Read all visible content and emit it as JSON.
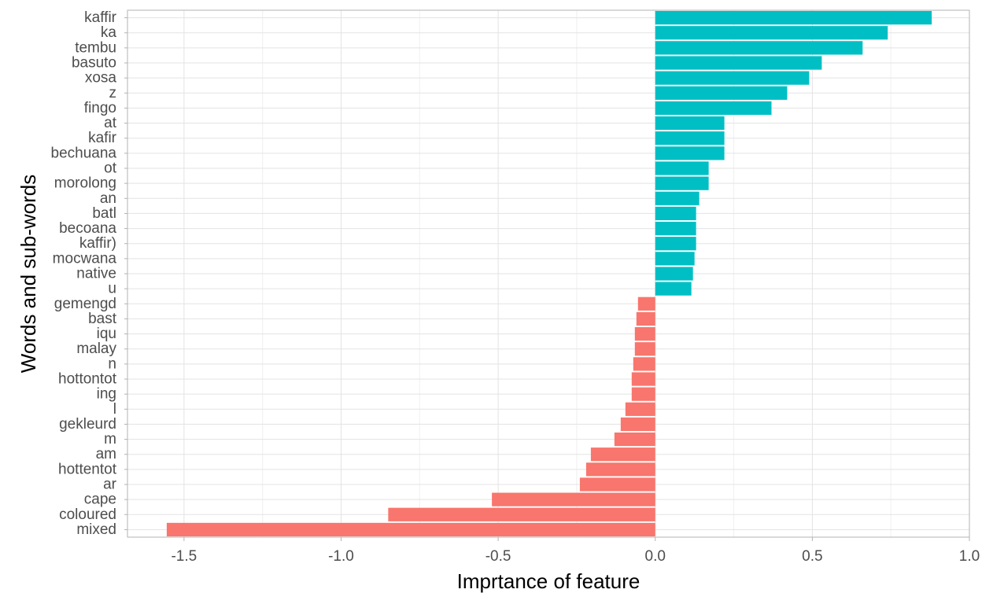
{
  "chart_data": {
    "type": "bar",
    "orientation": "horizontal",
    "xlabel": "Imprtance of feature",
    "ylabel": "Words and sub-words",
    "xlim": [
      -1.68,
      1.0
    ],
    "xticks": [
      -1.5,
      -1.0,
      -0.5,
      0.0,
      0.5,
      1.0
    ],
    "xtick_labels": [
      "-1.5",
      "-1.0",
      "-0.5",
      "0.0",
      "0.5",
      "1.0"
    ],
    "grid": true,
    "legend": "none",
    "categories": [
      "kaffir",
      "ka",
      "tembu",
      "basuto",
      "xosa",
      "z",
      "fingo",
      "at",
      "kafir",
      "bechuana",
      "ot",
      "morolong",
      "an",
      "batl",
      "becoana",
      "kaffir)",
      "mocwana",
      "native",
      "u",
      "gemengd",
      "bast",
      "iqu",
      "malay",
      "n",
      "hottontot",
      "ing",
      "l",
      "gekleurd",
      "m",
      "am",
      "hottentot",
      "ar",
      "cape",
      "coloured",
      "mixed"
    ],
    "values": [
      0.88,
      0.74,
      0.66,
      0.53,
      0.49,
      0.42,
      0.37,
      0.22,
      0.22,
      0.22,
      0.17,
      0.17,
      0.14,
      0.13,
      0.13,
      0.13,
      0.125,
      0.12,
      0.115,
      -0.055,
      -0.06,
      -0.065,
      -0.065,
      -0.07,
      -0.075,
      -0.075,
      -0.095,
      -0.11,
      -0.13,
      -0.205,
      -0.22,
      -0.24,
      -0.52,
      -0.85,
      -1.555
    ],
    "colors": {
      "positive": "#00bfc4",
      "negative": "#f8766d"
    }
  }
}
